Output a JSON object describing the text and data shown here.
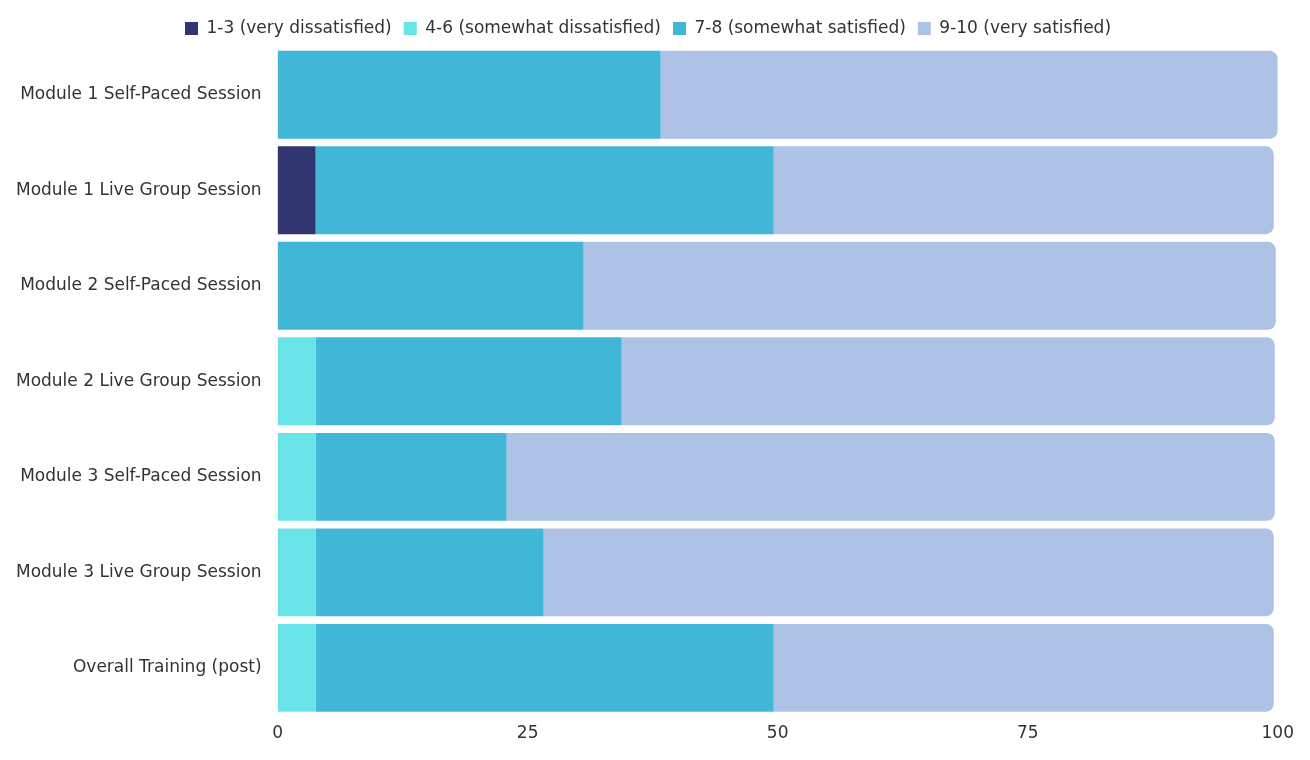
{
  "chart_data": {
    "type": "bar",
    "orientation": "horizontal",
    "stacked": true,
    "legend": "top",
    "grid": false,
    "categories": [
      "Module 1 Self-Paced Session",
      "Module 1 Live Group Session",
      "Module 2 Self-Paced Session",
      "Module 2 Live Group Session",
      "Module 3 Self-Paced Session",
      "Module 3 Live Group Session",
      "Overall Training (post)"
    ],
    "series": [
      {
        "name": "1-3 (very dissatisfied)",
        "color": "#313670",
        "values": [
          0,
          3.8,
          0,
          0,
          0,
          0,
          0
        ]
      },
      {
        "name": "4-6 (somewhat dissatisfied)",
        "color": "#68e4e8",
        "values": [
          0,
          0,
          0,
          3.8,
          3.8,
          3.8,
          3.8
        ]
      },
      {
        "name": "7-8 (somewhat satisfied)",
        "color": "#42b6d6",
        "values": [
          38.3,
          45.8,
          30.6,
          30.6,
          19.1,
          22.8,
          45.8
        ]
      },
      {
        "name": "9-10 (very satisfied)",
        "color": "#aec2e5",
        "values": [
          61.7,
          50.0,
          69.2,
          65.3,
          76.8,
          73.0,
          50.0
        ]
      }
    ],
    "xlim": [
      0,
      100
    ],
    "xticks": [
      0,
      25,
      50,
      75,
      100
    ]
  }
}
